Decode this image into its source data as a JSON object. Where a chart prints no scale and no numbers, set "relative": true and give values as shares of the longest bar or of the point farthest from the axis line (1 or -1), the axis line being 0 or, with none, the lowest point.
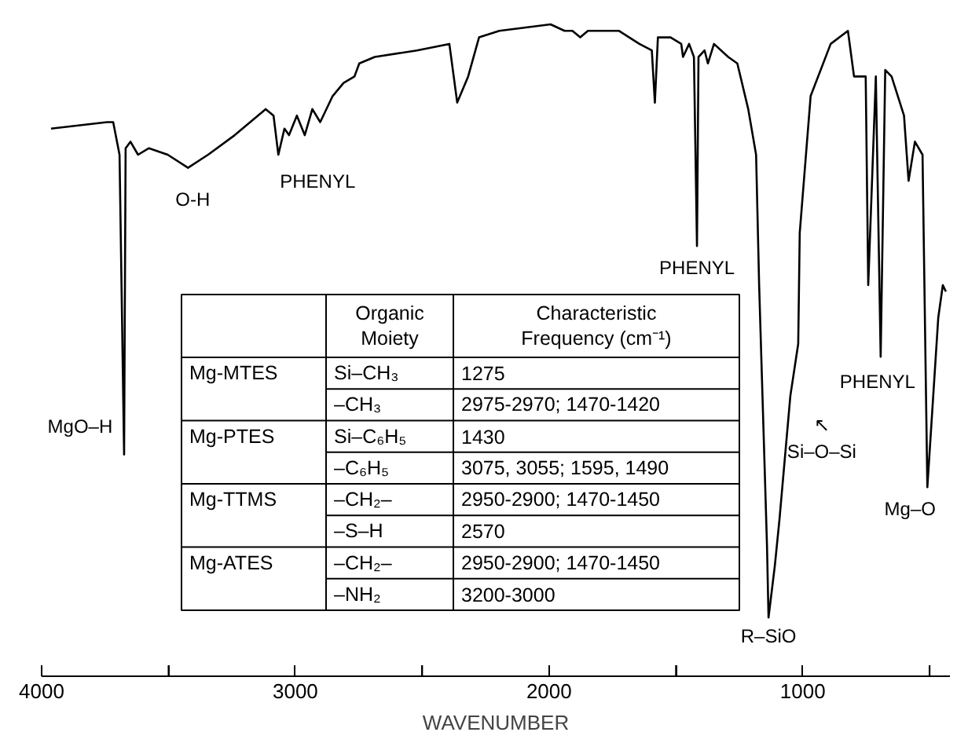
{
  "chart_data": {
    "type": "line",
    "relative": true,
    "xlabel": "WAVENUMBER",
    "xlim": [
      4000,
      420
    ],
    "xticks": [
      {
        "value": 4000,
        "label": "4000"
      },
      {
        "value": 3500,
        "label": null
      },
      {
        "value": 3000,
        "label": "3000"
      },
      {
        "value": 2500,
        "label": null
      },
      {
        "value": 2000,
        "label": "2000"
      },
      {
        "value": 1500,
        "label": null
      },
      {
        "value": 1000,
        "label": "1000"
      },
      {
        "value": 500,
        "label": null
      }
    ],
    "grid": false,
    "tick_labels": "x",
    "line_style": "solid",
    "series": [
      {
        "color": "#000000",
        "x": [
          3963,
          3742,
          3718,
          3693,
          3675,
          3669,
          3650,
          3620,
          3577,
          3503,
          3423,
          3344,
          3239,
          3117,
          3086,
          3067,
          3043,
          3025,
          2994,
          2963,
          2933,
          2902,
          2853,
          2810,
          2767,
          2748,
          2687,
          2521,
          2393,
          2362,
          2319,
          2276,
          2196,
          1994,
          1939,
          1908,
          1877,
          1847,
          1785,
          1724,
          1644,
          1595,
          1583,
          1571,
          1521,
          1479,
          1472,
          1448,
          1429,
          1417,
          1411,
          1387,
          1374,
          1350,
          1294,
          1258,
          1215,
          1184,
          1172,
          1141,
          1135,
          1110,
          1092,
          1049,
          1018,
          1012,
          969,
          890,
          822,
          798,
          767,
          752,
          742,
          712,
          693,
          675,
          650,
          601,
          583,
          558,
          528,
          509,
          466,
          448,
          436
        ],
        "values": [
          0.84,
          0.85,
          0.85,
          0.8,
          0.34,
          0.81,
          0.82,
          0.8,
          0.81,
          0.8,
          0.78,
          0.8,
          0.83,
          0.87,
          0.86,
          0.8,
          0.84,
          0.83,
          0.86,
          0.83,
          0.87,
          0.85,
          0.89,
          0.91,
          0.92,
          0.94,
          0.95,
          0.96,
          0.97,
          0.88,
          0.92,
          0.98,
          0.99,
          1.0,
          0.99,
          0.99,
          0.98,
          0.99,
          0.99,
          0.99,
          0.97,
          0.96,
          0.88,
          0.98,
          0.98,
          0.97,
          0.95,
          0.97,
          0.95,
          0.66,
          0.95,
          0.96,
          0.94,
          0.97,
          0.95,
          0.94,
          0.87,
          0.8,
          0.6,
          0.2,
          0.09,
          0.17,
          0.24,
          0.43,
          0.51,
          0.68,
          0.89,
          0.97,
          0.99,
          0.92,
          0.92,
          0.92,
          0.6,
          0.92,
          0.49,
          0.93,
          0.92,
          0.86,
          0.76,
          0.82,
          0.8,
          0.29,
          0.55,
          0.6,
          0.59
        ]
      }
    ],
    "annotations": [
      {
        "text": "MgO–H",
        "x": 3675,
        "y": 0.34
      },
      {
        "text": "O-H",
        "x": 3423,
        "y": 0.78
      },
      {
        "text": "PHENYL",
        "x": 3067,
        "y": 0.8
      },
      {
        "text": "PHENYL",
        "x": 1417,
        "y": 0.66
      },
      {
        "text": "PHENYL",
        "x": 693,
        "y": 0.49
      },
      {
        "text": "↖\nSi–O–Si",
        "x": 1049,
        "y": 0.43
      },
      {
        "text": "R–SiO",
        "x": 1135,
        "y": 0.09
      },
      {
        "text": "Mg–O",
        "x": 509,
        "y": 0.29
      },
      "Organic\nMoiety",
      "Characteristic\nFrequency (cm⁻¹)",
      "Mg-MTES",
      "Si–CH₃",
      "1275",
      "–CH₃",
      "2975-2970; 1470-1420",
      "Mg-PTES",
      "Si–C₆H₅",
      "1430",
      "–C₆H₅",
      "3075, 3055; 1595, 1490",
      "Mg-TTMS",
      "–CH₂–",
      "2950-2900; 1470-1450",
      "–S–H",
      "2570",
      "Mg-ATES",
      "–CH₂–",
      "2950-2900; 1470-1450",
      "–NH₂",
      "3200-3000"
    ]
  }
}
